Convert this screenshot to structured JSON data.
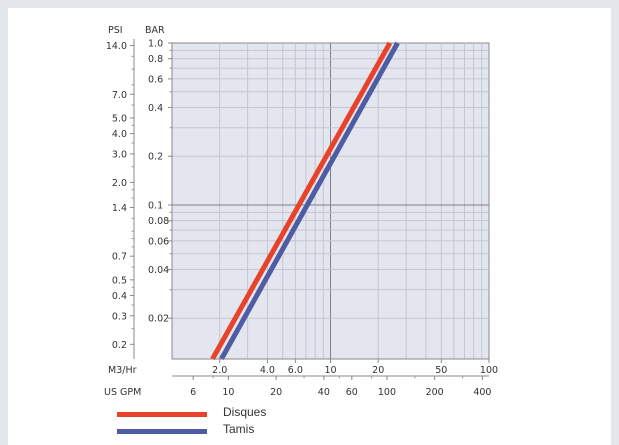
{
  "chart_data": {
    "type": "line",
    "title": "",
    "y_axes": {
      "left_header": "PSI",
      "right_header": "BAR",
      "psi_ticks": [
        {
          "label": "14.0",
          "bar": 0.965
        },
        {
          "label": "7.0",
          "bar": 0.4826
        },
        {
          "label": "5.0",
          "bar": 0.3447
        },
        {
          "label": "4.0",
          "bar": 0.2758
        },
        {
          "label": "3.0",
          "bar": 0.2068
        },
        {
          "label": "2.0",
          "bar": 0.1379
        },
        {
          "label": "1.4",
          "bar": 0.0965
        },
        {
          "label": "0.7",
          "bar": 0.0483
        },
        {
          "label": "0.5",
          "bar": 0.0345
        },
        {
          "label": "0.4",
          "bar": 0.0276
        },
        {
          "label": "0.3",
          "bar": 0.0207
        },
        {
          "label": "0.2",
          "bar": 0.0138
        }
      ],
      "bar_ticks": [
        "1.0",
        "0.8",
        "0.6",
        "0.4",
        "0.2",
        "0.1",
        "0.08",
        "0.06",
        "0.04",
        "0.02"
      ],
      "ylim_bar": [
        0.0112,
        1.0
      ],
      "scale": "log"
    },
    "x_axes": {
      "m3hr_header": "M3/Hr",
      "gpm_header": "US GPM",
      "m3hr_ticks": [
        "2.0",
        "4.0",
        "6.0",
        "10",
        "20",
        "50",
        "100"
      ],
      "gpm_ticks": [
        {
          "label": "6",
          "m3hr": 1.36
        },
        {
          "label": "10",
          "m3hr": 2.27
        },
        {
          "label": "20",
          "m3hr": 4.54
        },
        {
          "label": "40",
          "m3hr": 9.08
        },
        {
          "label": "60",
          "m3hr": 13.63
        },
        {
          "label": "100",
          "m3hr": 22.71
        },
        {
          "label": "200",
          "m3hr": 45.42
        },
        {
          "label": "400",
          "m3hr": 90.85
        }
      ],
      "xlim_m3hr": [
        1.0,
        100
      ],
      "scale": "log"
    },
    "grid": true,
    "legend_position": "bottom-left",
    "series": [
      {
        "name": "Disques",
        "color": "#e8432a",
        "points": [
          {
            "x": 1.8,
            "y": 0.0112
          },
          {
            "x": 23.7,
            "y": 1.0
          }
        ]
      },
      {
        "name": "Tamis",
        "color": "#4e5da3",
        "points": [
          {
            "x": 2.05,
            "y": 0.0112
          },
          {
            "x": 26.5,
            "y": 1.0
          }
        ]
      }
    ]
  }
}
